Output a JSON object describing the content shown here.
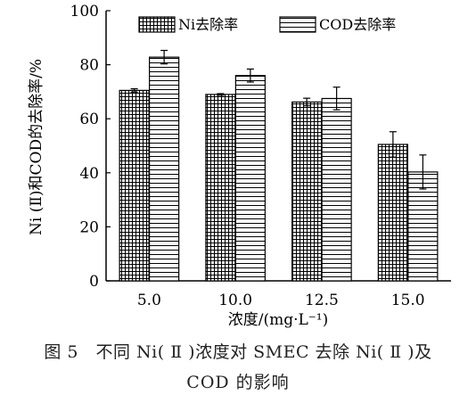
{
  "chart_data": {
    "type": "bar",
    "categories": [
      "5.0",
      "10.0",
      "12.5",
      "15.0"
    ],
    "series": [
      {
        "name": "Ni去除率",
        "values": [
          70.5,
          69.0,
          66.2,
          50.5
        ],
        "errors": [
          0.6,
          0.3,
          1.4,
          4.7
        ],
        "pattern": "grid"
      },
      {
        "name": "COD去除率",
        "values": [
          82.8,
          76.0,
          67.5,
          40.3
        ],
        "errors": [
          2.5,
          2.4,
          4.2,
          6.3
        ],
        "pattern": "horizontal"
      }
    ],
    "xlabel": "浓度/(mg·L⁻¹)",
    "ylabel": "Ni (Ⅱ)和COD的去除率/%",
    "ylim": [
      0,
      100
    ],
    "yticks": [
      "0",
      "20",
      "40",
      "60",
      "80",
      "100"
    ],
    "legend_position": "top",
    "grid": false
  },
  "caption": {
    "line1": "图 5　不同 Ni( Ⅱ )浓度对 SMEC 去除 Ni( Ⅱ )及",
    "line2": "COD 的影响"
  }
}
